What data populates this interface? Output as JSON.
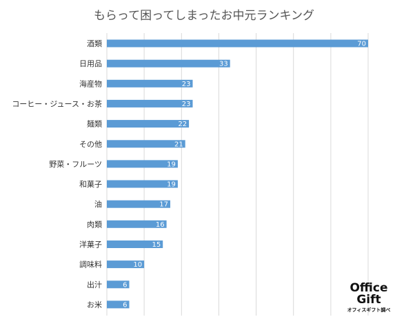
{
  "chart_data": {
    "type": "bar",
    "orientation": "horizontal",
    "title": "もらって困ってしまったお中元ランキング",
    "categories": [
      "酒類",
      "日用品",
      "海産物",
      "コーヒー・ジュース・お茶",
      "麺類",
      "その他",
      "野菜・フルーツ",
      "和菓子",
      "油",
      "肉類",
      "洋菓子",
      "調味料",
      "出汁",
      "お米"
    ],
    "values": [
      70,
      33,
      23,
      23,
      22,
      21,
      19,
      19,
      17,
      16,
      15,
      10,
      6,
      6
    ],
    "xlim": [
      0,
      70
    ],
    "grid": true,
    "bar_color": "#5b9bd5",
    "grid_color": "#d9d9d9"
  },
  "logo": {
    "line1": "Office",
    "line2": "Gift",
    "caption": "オフィスギフト調べ"
  }
}
